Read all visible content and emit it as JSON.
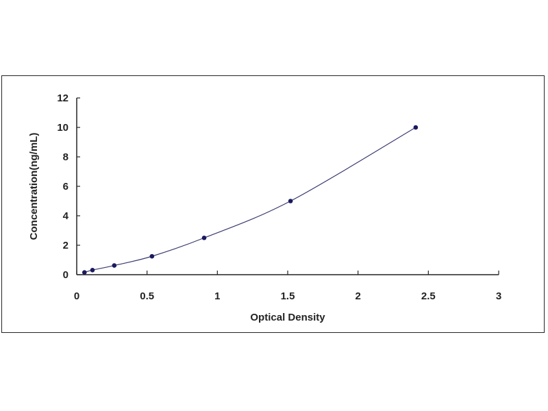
{
  "chart_data": {
    "type": "scatter",
    "title": "",
    "xlabel": "Optical Density",
    "ylabel": "Concentration(ng/mL)",
    "xlim": [
      0,
      3
    ],
    "ylim": [
      0,
      12
    ],
    "xticks": [
      "0",
      "0.5",
      "1",
      "1.5",
      "2",
      "2.5",
      "3"
    ],
    "yticks": [
      "0",
      "2",
      "4",
      "6",
      "8",
      "10",
      "12"
    ],
    "grid": false,
    "legend": "none",
    "colors": {
      "marker": "#1a1a5e",
      "line": "#3a3a70",
      "axis": "#222222"
    },
    "series": [
      {
        "x": [
          0.055,
          0.112,
          0.267,
          0.535,
          0.906,
          1.52,
          2.41
        ],
        "y": [
          0.156,
          0.312,
          0.625,
          1.25,
          2.5,
          5,
          10
        ],
        "fit": "smooth curve"
      }
    ]
  }
}
